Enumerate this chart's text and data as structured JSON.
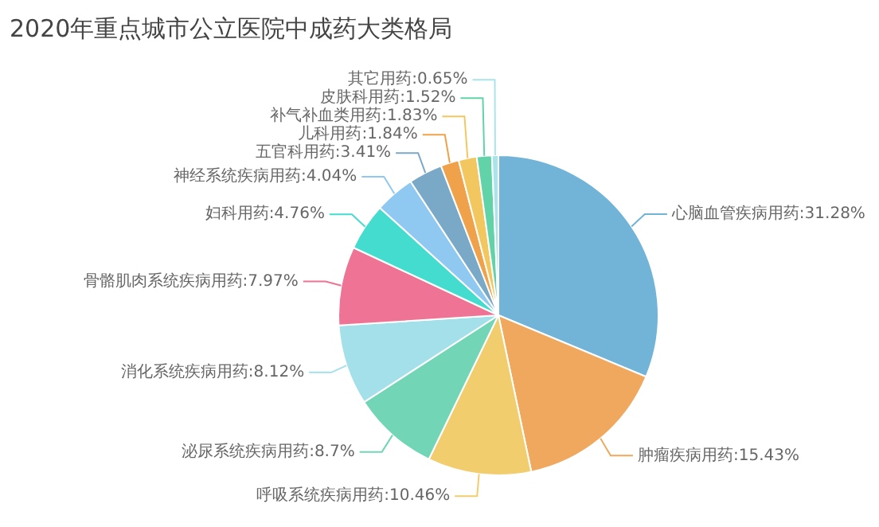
{
  "chart_data": {
    "type": "pie",
    "title": "2020年重点城市公立医院中成药大类格局",
    "categories": [
      "心脑血管疾病用药",
      "肿瘤疾病用药",
      "呼吸系统疾病用药",
      "泌尿系统疾病用药",
      "消化系统疾病用药",
      "骨骼肌肉系统疾病用药",
      "妇科用药",
      "神经系统疾病用药",
      "五官科用药",
      "儿科用药",
      "补气补血类用药",
      "皮肤科用药",
      "其它用药"
    ],
    "values": [
      31.28,
      15.43,
      10.46,
      8.7,
      8.12,
      7.97,
      4.76,
      4.04,
      3.41,
      1.84,
      1.83,
      1.52,
      0.65
    ],
    "value_labels": [
      "31.28%",
      "15.43%",
      "10.46%",
      "8.7%",
      "8.12%",
      "7.97%",
      "4.76%",
      "4.04%",
      "3.41%",
      "1.84%",
      "1.83%",
      "1.52%",
      "0.65%"
    ],
    "colors": [
      "#72b4d8",
      "#f0a85e",
      "#f2cd6e",
      "#72d6b6",
      "#a3e0ea",
      "#ee7394",
      "#45dcd0",
      "#8fc9f2",
      "#7aa9c8",
      "#f0a24a",
      "#f3c75f",
      "#62d3a8",
      "#a8e4ea"
    ],
    "legend": false
  }
}
